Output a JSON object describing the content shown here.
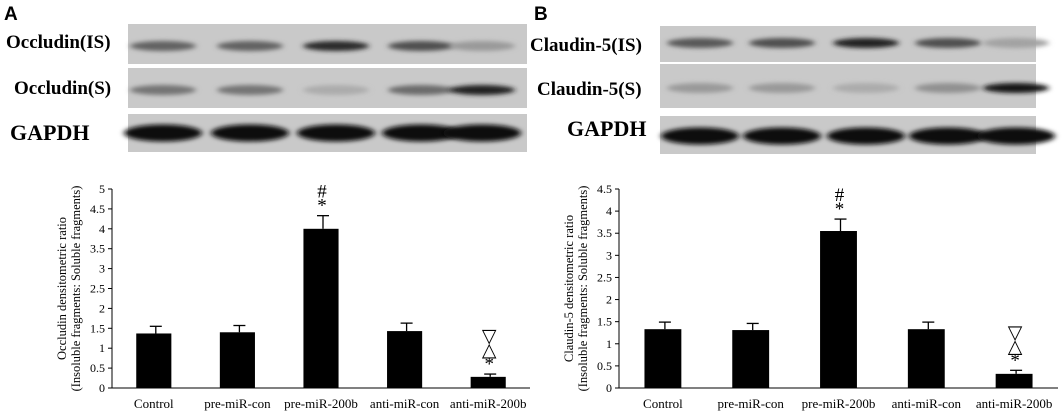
{
  "panels": [
    {
      "letter": "A",
      "blot_labels": [
        "Occludin(IS)",
        "Occludin(S)",
        "GAPDH"
      ],
      "blot_intensity": [
        [
          0.55,
          0.55,
          0.85,
          0.65,
          0.25
        ],
        [
          0.45,
          0.45,
          0.15,
          0.5,
          0.9
        ],
        [
          1.0,
          1.0,
          1.0,
          1.0,
          1.0
        ]
      ]
    },
    {
      "letter": "B",
      "blot_labels": [
        "Claudin-5(IS)",
        "Claudin-5(S)",
        "GAPDH"
      ],
      "blot_intensity": [
        [
          0.6,
          0.65,
          0.9,
          0.65,
          0.2
        ],
        [
          0.25,
          0.25,
          0.15,
          0.3,
          0.95
        ],
        [
          1.0,
          1.0,
          1.0,
          1.0,
          1.0
        ]
      ]
    }
  ],
  "chart_data": [
    {
      "type": "bar",
      "categories": [
        "Control",
        "pre-miR-con",
        "pre-miR-200b",
        "anti-miR-con",
        "anti-miR-200b"
      ],
      "values": [
        1.37,
        1.4,
        4.0,
        1.43,
        0.28
      ],
      "errors": [
        0.18,
        0.17,
        0.33,
        0.2,
        0.07
      ],
      "ylabel_line1": "Occludin densitometric ratio",
      "ylabel_line2": "(Insoluble fragments: Soluble fragments)",
      "ylim": [
        0,
        5
      ],
      "yticks": [
        "0",
        "0.5",
        "1",
        "1.5",
        "2",
        "2.5",
        "3",
        "3.5",
        "4",
        "4.5",
        "5"
      ],
      "marks": [
        [],
        [],
        [
          "#",
          "*"
        ],
        [],
        [
          "▽",
          "△",
          "*"
        ]
      ],
      "color": "#000000"
    },
    {
      "type": "bar",
      "categories": [
        "Control",
        "pre-miR-con",
        "pre-miR-200b",
        "anti-miR-con",
        "anti-miR-200b"
      ],
      "values": [
        1.33,
        1.31,
        3.55,
        1.33,
        0.32
      ],
      "errors": [
        0.16,
        0.15,
        0.27,
        0.16,
        0.08
      ],
      "ylabel_line1": "Claudin-5 densitometric ratio",
      "ylabel_line2": "(Insoluble fragments: Soluble fragments)",
      "ylim": [
        0,
        4.5
      ],
      "yticks": [
        "0",
        "0.5",
        "1",
        "1.5",
        "2",
        "2.5",
        "3",
        "3.5",
        "4",
        "4.5"
      ],
      "marks": [
        [],
        [],
        [
          "#",
          "*"
        ],
        [],
        [
          "▽",
          "△",
          "*"
        ]
      ],
      "color": "#000000"
    }
  ]
}
